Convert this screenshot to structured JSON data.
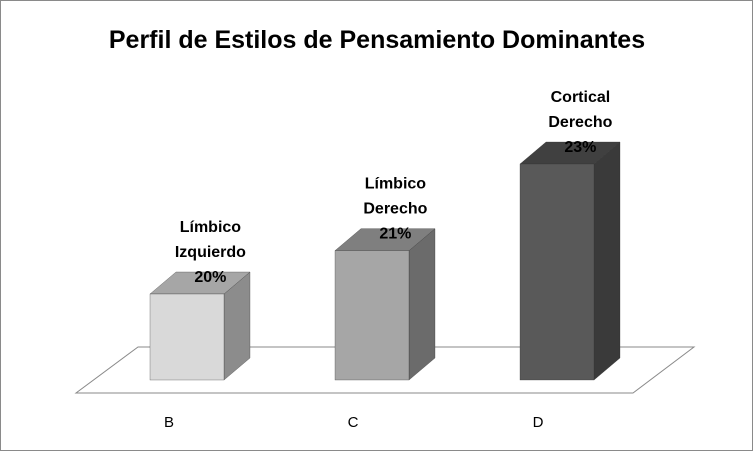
{
  "chart_data": {
    "type": "bar",
    "title": "Perfil de Estilos de Pensamiento Dominantes",
    "categories": [
      "B",
      "C",
      "D"
    ],
    "values": [
      20,
      21,
      23
    ],
    "unit": "%",
    "data_labels": [
      [
        "Límbico",
        "Izquierdo",
        "20%"
      ],
      [
        "Límbico",
        "Derecho",
        "21%"
      ],
      [
        "Cortical",
        "Derecho",
        "23%"
      ]
    ],
    "bar_colors": [
      {
        "front": "#d9d9d9",
        "top": "#a6a6a6",
        "side": "#8c8c8c"
      },
      {
        "front": "#a6a6a6",
        "top": "#7f7f7f",
        "side": "#6b6b6b"
      },
      {
        "front": "#595959",
        "top": "#404040",
        "side": "#3a3a3a"
      }
    ],
    "three_d": true,
    "legend": "none",
    "grid": false
  }
}
